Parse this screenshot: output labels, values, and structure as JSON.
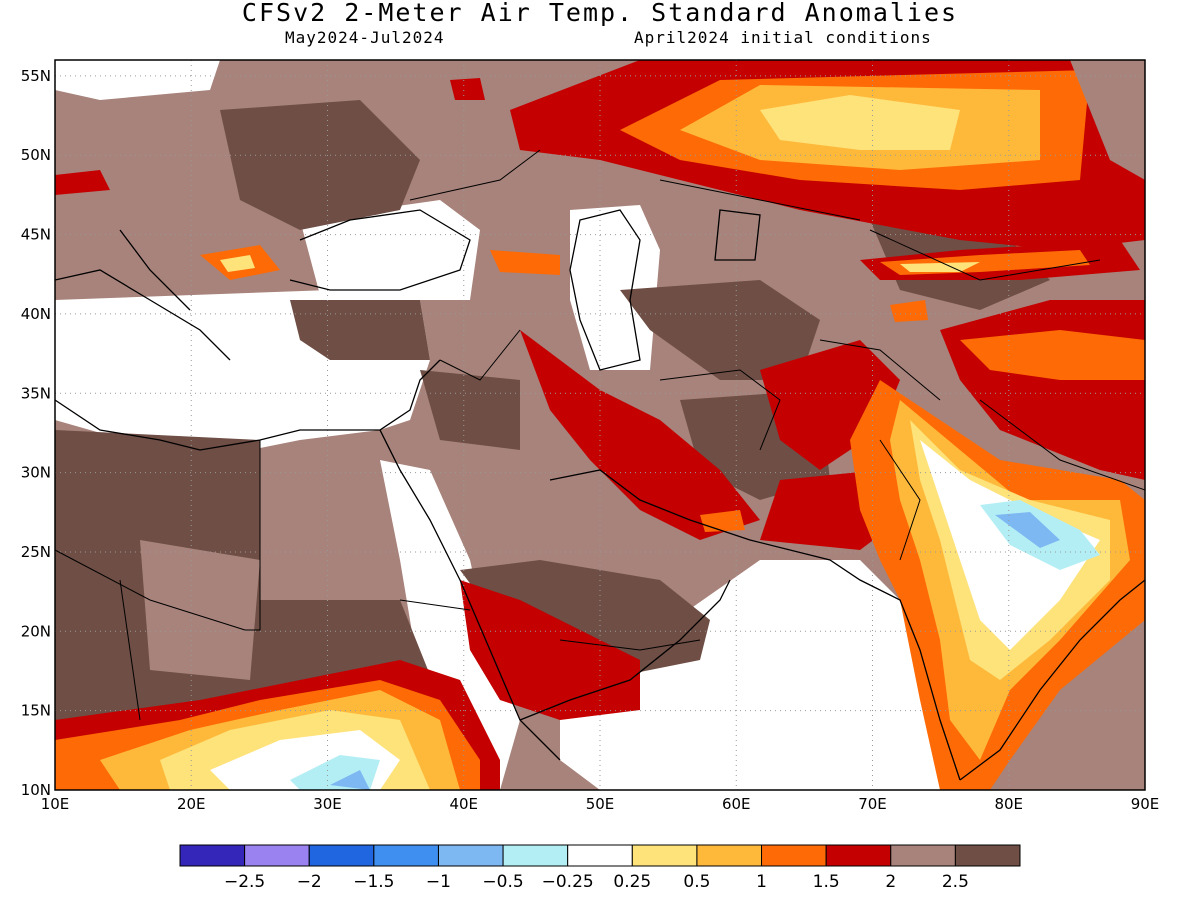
{
  "title": "CFSv2 2-Meter Air Temp. Standard Anomalies",
  "subtitle_left": "May2024-Jul2024",
  "subtitle_right": "April2024 initial conditions",
  "map": {
    "lon_range": [
      10,
      90
    ],
    "lat_range": [
      10,
      56
    ],
    "lon_ticks": [
      "10E",
      "20E",
      "30E",
      "40E",
      "50E",
      "60E",
      "70E",
      "80E",
      "90E"
    ],
    "lat_ticks": [
      "10N",
      "15N",
      "20N",
      "25N",
      "30N",
      "35N",
      "40N",
      "45N",
      "50N",
      "55N"
    ],
    "gridlines": "dotted"
  },
  "colorbar": {
    "colors": [
      "#3326b8",
      "#9a82f0",
      "#1f66e0",
      "#3f8ff0",
      "#7db8f2",
      "#b4eef5",
      "#ffffff",
      "#fee27a",
      "#feb93a",
      "#fe6a06",
      "#c50000",
      "#a7837b",
      "#6e4e45"
    ],
    "labels": [
      "−2.5",
      "−2",
      "−1.5",
      "−1",
      "−0.5",
      "−0.25",
      "0.25",
      "0.5",
      "1",
      "1.5",
      "2",
      "2.5"
    ]
  }
}
